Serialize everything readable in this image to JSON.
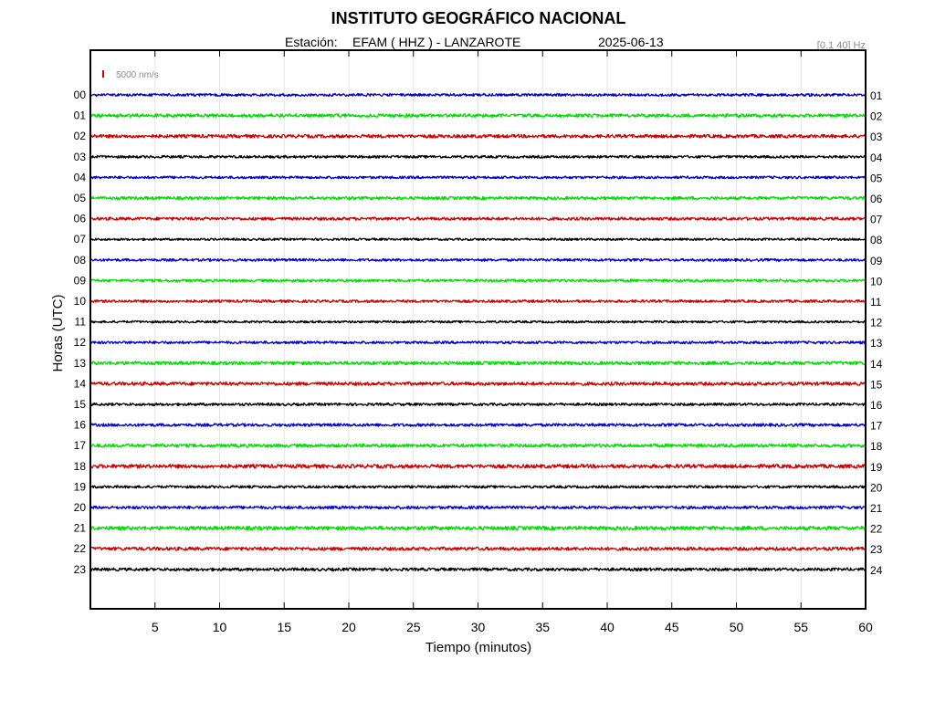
{
  "chart_data": {
    "type": "line",
    "title": "INSTITUTO GEOGRÁFICO NACIONAL",
    "station_label": "Estación:",
    "station": "EFAM ( HHZ ) - LANZAROTE",
    "date": "2025-06-13",
    "filter": "[0.1 40] Hz",
    "scale_label": "5000 nm/s",
    "xlabel": "Tiempo (minutos)",
    "ylabel": "Horas (UTC)",
    "xlim": [
      0,
      60
    ],
    "x_ticks": [
      5,
      10,
      15,
      20,
      25,
      30,
      35,
      40,
      45,
      50,
      55,
      60
    ],
    "grid": true,
    "left_hour_labels": [
      "00",
      "01",
      "02",
      "03",
      "04",
      "05",
      "06",
      "07",
      "08",
      "09",
      "10",
      "11",
      "12",
      "13",
      "14",
      "15",
      "16",
      "17",
      "18",
      "19",
      "20",
      "21",
      "22",
      "23"
    ],
    "right_hour_labels": [
      "01",
      "02",
      "03",
      "04",
      "05",
      "06",
      "07",
      "08",
      "09",
      "10",
      "11",
      "12",
      "13",
      "14",
      "15",
      "16",
      "17",
      "18",
      "19",
      "20",
      "21",
      "22",
      "23",
      "24"
    ],
    "trace_colors": [
      "#0000cc",
      "#00dd00",
      "#cc0000",
      "#000000"
    ],
    "scale_color": "#dd0000",
    "series": [
      {
        "hour": "00",
        "amplitude": 0.35
      },
      {
        "hour": "01",
        "amplitude": 0.45
      },
      {
        "hour": "02",
        "amplitude": 0.45
      },
      {
        "hour": "03",
        "amplitude": 0.35
      },
      {
        "hour": "04",
        "amplitude": 0.35
      },
      {
        "hour": "05",
        "amplitude": 0.4
      },
      {
        "hour": "06",
        "amplitude": 0.4
      },
      {
        "hour": "07",
        "amplitude": 0.3
      },
      {
        "hour": "08",
        "amplitude": 0.35
      },
      {
        "hour": "09",
        "amplitude": 0.35
      },
      {
        "hour": "10",
        "amplitude": 0.35
      },
      {
        "hour": "11",
        "amplitude": 0.3
      },
      {
        "hour": "12",
        "amplitude": 0.35
      },
      {
        "hour": "13",
        "amplitude": 0.45
      },
      {
        "hour": "14",
        "amplitude": 0.45
      },
      {
        "hour": "15",
        "amplitude": 0.35
      },
      {
        "hour": "16",
        "amplitude": 0.4
      },
      {
        "hour": "17",
        "amplitude": 0.45
      },
      {
        "hour": "18",
        "amplitude": 0.5
      },
      {
        "hour": "19",
        "amplitude": 0.35
      },
      {
        "hour": "20",
        "amplitude": 0.4
      },
      {
        "hour": "21",
        "amplitude": 0.5
      },
      {
        "hour": "22",
        "amplitude": 0.45
      },
      {
        "hour": "23",
        "amplitude": 0.4
      }
    ]
  }
}
